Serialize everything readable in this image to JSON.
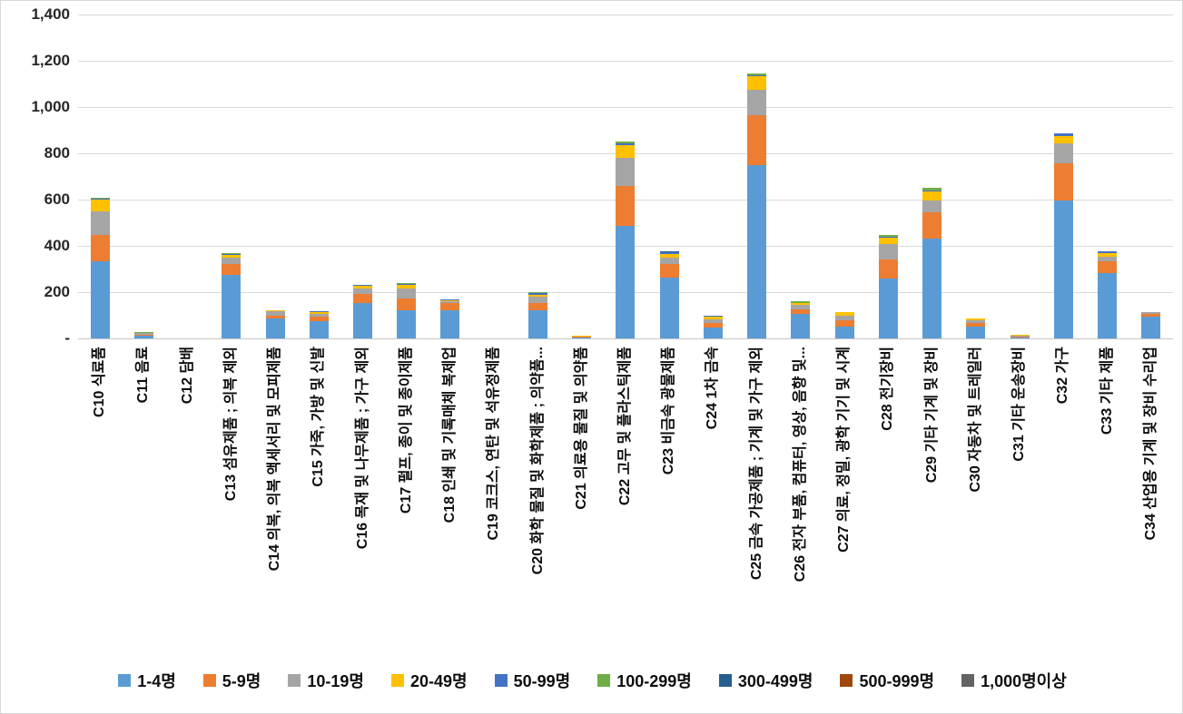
{
  "chart_data": {
    "type": "bar",
    "stacked": true,
    "title": "",
    "grid": true,
    "legend_position": "bottom",
    "ylim": [
      0,
      1400
    ],
    "ytick_step": 200,
    "ytick_labels": [
      "-",
      "200",
      "400",
      "600",
      "800",
      "1,000",
      "1,200",
      "1,400"
    ],
    "categories": [
      "C10 식료품",
      "C11 음료",
      "C12 담배",
      "C13 섬유제품 ; 의복 제외",
      "C14 의복, 의복 액세서리 및 모피제품",
      "C15 가죽, 가방 및 신발",
      "C16 목재 및 나무제품 ; 가구 제외",
      "C17 펄프, 종이 및 종이제품",
      "C18 인쇄 및 기록매체 복제업",
      "C19 코크스, 연탄 및 석유정제품",
      "C20 화학 물질 및 화학제품 ; 의약품...",
      "C21 의료용 물질 및 의약품",
      "C22 고무 및 플라스틱제품",
      "C23 비금속 광물제품",
      "C24 1차 금속",
      "C25 금속 가공제품 ; 기계 및 가구 제외",
      "C26 전자 부품, 컴퓨터, 영상, 음향 및...",
      "C27 의료, 정밀, 광학 기기 및 시계",
      "C28 전기장비",
      "C29 기타 기계 및 장비",
      "C30 자동차 및 트레일러",
      "C31 기타 운송장비",
      "C32 가구",
      "C33 기타 제품",
      "C34 산업용 기계 및 장비 수리업"
    ],
    "series": [
      {
        "name": "1-4명",
        "color": "#5B9BD5",
        "values": [
          334,
          11,
          0,
          273,
          85,
          76,
          152,
          123,
          123,
          0,
          120,
          4,
          485,
          261,
          48,
          750,
          105,
          50,
          257,
          430,
          52,
          5,
          598,
          284,
          95
        ]
      },
      {
        "name": "5-9명",
        "color": "#ED7D31",
        "values": [
          112,
          6,
          0,
          50,
          15,
          19,
          40,
          50,
          30,
          0,
          34,
          2,
          175,
          59,
          20,
          213,
          20,
          30,
          83,
          115,
          14,
          4,
          157,
          49,
          10
        ]
      },
      {
        "name": "10-19명",
        "color": "#A5A5A5",
        "values": [
          105,
          5,
          0,
          27,
          17,
          11,
          24,
          42,
          8,
          0,
          26,
          2,
          120,
          29,
          15,
          112,
          22,
          20,
          68,
          52,
          13,
          3,
          89,
          20,
          8
        ]
      },
      {
        "name": "20-49명",
        "color": "#FFC000",
        "values": [
          48,
          2,
          0,
          12,
          5,
          8,
          13,
          15,
          5,
          0,
          10,
          4,
          55,
          14,
          10,
          60,
          5,
          13,
          28,
          39,
          6,
          4,
          32,
          15,
          2
        ]
      },
      {
        "name": "50-99명",
        "color": "#4472C4",
        "values": [
          4,
          0,
          0,
          4,
          0,
          2,
          2,
          6,
          2,
          0,
          7,
          0,
          10,
          8,
          4,
          3,
          3,
          2,
          3,
          5,
          2,
          0,
          9,
          8,
          0
        ]
      },
      {
        "name": "100-299명",
        "color": "#70AD47",
        "values": [
          5,
          3,
          0,
          4,
          0,
          0,
          0,
          2,
          0,
          0,
          4,
          0,
          5,
          2,
          3,
          7,
          5,
          0,
          10,
          10,
          0,
          0,
          2,
          2,
          0
        ]
      },
      {
        "name": "300-499명",
        "color": "#255E91",
        "values": [
          0,
          0,
          0,
          0,
          0,
          0,
          0,
          0,
          0,
          0,
          0,
          0,
          0,
          2,
          0,
          0,
          0,
          0,
          0,
          0,
          0,
          0,
          0,
          0,
          0
        ]
      },
      {
        "name": "500-999명",
        "color": "#9E480E",
        "values": [
          0,
          0,
          0,
          0,
          0,
          0,
          0,
          0,
          0,
          0,
          0,
          0,
          0,
          0,
          0,
          0,
          0,
          0,
          0,
          0,
          0,
          0,
          0,
          0,
          0
        ]
      },
      {
        "name": "1,000명이상",
        "color": "#636363",
        "values": [
          0,
          0,
          0,
          0,
          0,
          0,
          0,
          0,
          0,
          0,
          0,
          0,
          0,
          0,
          0,
          0,
          0,
          0,
          0,
          0,
          0,
          0,
          0,
          0,
          0
        ]
      }
    ]
  }
}
